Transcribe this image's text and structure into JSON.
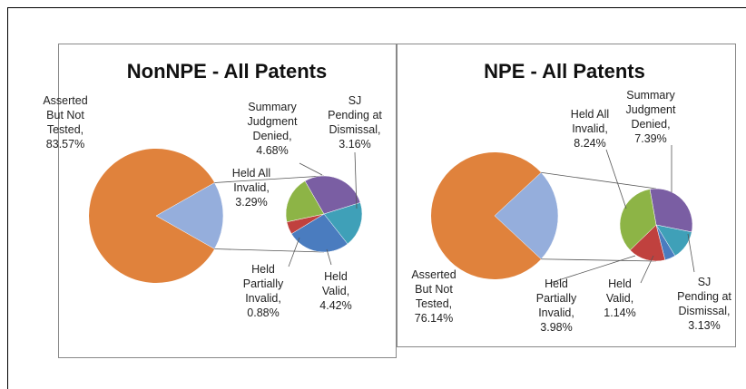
{
  "chart_data": [
    {
      "type": "pie-of-pie",
      "title": "NonNPE - All Patents",
      "categories": [
        "Asserted But Not Tested,",
        "Summary Judgment Denied,",
        "SJ Pending at Dismissal,",
        "Held Valid,",
        "Held Partially Invalid,",
        "Held All Invalid,"
      ],
      "values": [
        83.57,
        4.68,
        3.16,
        4.42,
        0.88,
        3.29
      ],
      "value_labels": [
        "83.57%",
        "4.68%",
        "3.16%",
        "4.42%",
        "0.88%",
        "3.29%"
      ],
      "colors": [
        "#e0823c",
        "#7a5ea3",
        "#3fa0b8",
        "#4a7cbf",
        "#c0413e",
        "#8db446"
      ],
      "other_color": "#95aedc"
    },
    {
      "type": "pie-of-pie",
      "title": "NPE - All Patents",
      "categories": [
        "Asserted But Not Tested,",
        "Summary Judgment Denied,",
        "SJ Pending at Dismissal,",
        "Held Valid,",
        "Held Partially Invalid,",
        "Held All Invalid,"
      ],
      "values": [
        76.14,
        7.39,
        3.13,
        1.14,
        3.98,
        8.24
      ],
      "value_labels": [
        "76.14%",
        "7.39%",
        "3.13%",
        "1.14%",
        "3.98%",
        "8.24%"
      ],
      "colors": [
        "#e0823c",
        "#7a5ea3",
        "#3fa0b8",
        "#4a7cbf",
        "#c0413e",
        "#8db446"
      ],
      "other_color": "#95aedc"
    }
  ]
}
